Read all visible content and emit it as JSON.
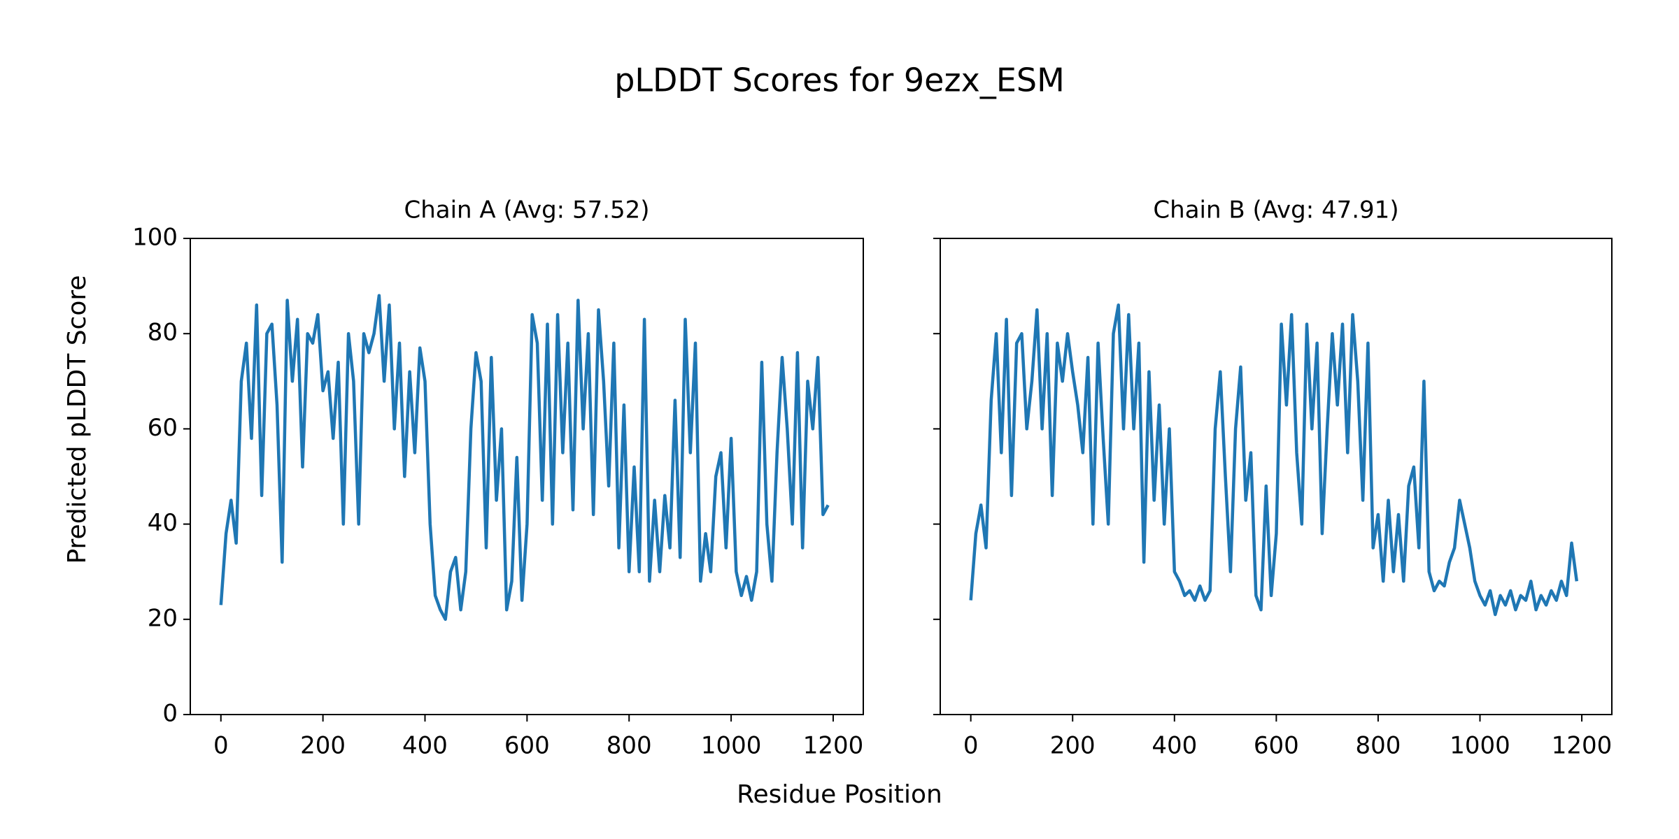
{
  "figure": {
    "title": "pLDDT Scores for 9ezx_ESM",
    "xlabel": "Residue Position",
    "ylabel": "Predicted pLDDT Score"
  },
  "chart_data": [
    {
      "type": "line",
      "title": "Chain A (Avg: 57.52)",
      "x": [
        0,
        10,
        20,
        30,
        40,
        50,
        60,
        70,
        80,
        90,
        100,
        110,
        120,
        130,
        140,
        150,
        160,
        170,
        180,
        190,
        200,
        210,
        220,
        230,
        240,
        250,
        260,
        270,
        280,
        290,
        300,
        310,
        320,
        330,
        340,
        350,
        360,
        370,
        380,
        390,
        400,
        410,
        420,
        430,
        440,
        450,
        460,
        470,
        480,
        490,
        500,
        510,
        520,
        530,
        540,
        550,
        560,
        570,
        580,
        590,
        600,
        610,
        620,
        630,
        640,
        650,
        660,
        670,
        680,
        690,
        700,
        710,
        720,
        730,
        740,
        750,
        760,
        770,
        780,
        790,
        800,
        810,
        820,
        830,
        840,
        850,
        860,
        870,
        880,
        890,
        900,
        910,
        920,
        930,
        940,
        950,
        960,
        970,
        980,
        990,
        1000,
        1010,
        1020,
        1030,
        1040,
        1050,
        1060,
        1070,
        1080,
        1090,
        1100,
        1110,
        1120,
        1130,
        1140,
        1150,
        1160,
        1170,
        1180,
        1190
      ],
      "series": [
        {
          "color": "#1f77b4",
          "values": [
            23,
            38,
            45,
            36,
            70,
            78,
            58,
            86,
            46,
            80,
            82,
            65,
            32,
            87,
            70,
            83,
            52,
            80,
            78,
            84,
            68,
            72,
            58,
            74,
            40,
            80,
            70,
            40,
            80,
            76,
            80,
            88,
            70,
            86,
            60,
            78,
            50,
            72,
            55,
            77,
            70,
            40,
            25,
            22,
            20,
            30,
            33,
            22,
            30,
            60,
            76,
            70,
            35,
            75,
            45,
            60,
            22,
            28,
            54,
            24,
            40,
            84,
            78,
            45,
            82,
            40,
            84,
            55,
            78,
            43,
            87,
            60,
            80,
            42,
            85,
            70,
            48,
            78,
            35,
            65,
            30,
            52,
            30,
            83,
            28,
            45,
            30,
            46,
            35,
            66,
            33,
            83,
            55,
            78,
            28,
            38,
            30,
            50,
            55,
            35,
            58,
            30,
            25,
            29,
            24,
            30,
            74,
            40,
            28,
            55,
            75,
            60,
            40,
            76,
            35,
            70,
            60,
            75,
            42,
            44
          ]
        }
      ],
      "xlim": [
        -60,
        1259
      ],
      "ylim": [
        0,
        100
      ],
      "xticks": [
        0,
        200,
        400,
        600,
        800,
        1000,
        1200
      ],
      "yticks": [
        0,
        20,
        40,
        60,
        80,
        100
      ]
    },
    {
      "type": "line",
      "title": "Chain B (Avg: 47.91)",
      "x": [
        0,
        10,
        20,
        30,
        40,
        50,
        60,
        70,
        80,
        90,
        100,
        110,
        120,
        130,
        140,
        150,
        160,
        170,
        180,
        190,
        200,
        210,
        220,
        230,
        240,
        250,
        260,
        270,
        280,
        290,
        300,
        310,
        320,
        330,
        340,
        350,
        360,
        370,
        380,
        390,
        400,
        410,
        420,
        430,
        440,
        450,
        460,
        470,
        480,
        490,
        500,
        510,
        520,
        530,
        540,
        550,
        560,
        570,
        580,
        590,
        600,
        610,
        620,
        630,
        640,
        650,
        660,
        670,
        680,
        690,
        700,
        710,
        720,
        730,
        740,
        750,
        760,
        770,
        780,
        790,
        800,
        810,
        820,
        830,
        840,
        850,
        860,
        870,
        880,
        890,
        900,
        910,
        920,
        930,
        940,
        950,
        960,
        970,
        980,
        990,
        1000,
        1010,
        1020,
        1030,
        1040,
        1050,
        1060,
        1070,
        1080,
        1090,
        1100,
        1110,
        1120,
        1130,
        1140,
        1150,
        1160,
        1170,
        1180,
        1190
      ],
      "series": [
        {
          "color": "#1f77b4",
          "values": [
            24,
            38,
            44,
            35,
            66,
            80,
            55,
            83,
            46,
            78,
            80,
            60,
            70,
            85,
            60,
            80,
            46,
            78,
            70,
            80,
            72,
            65,
            55,
            75,
            40,
            78,
            58,
            40,
            80,
            86,
            60,
            84,
            60,
            78,
            32,
            72,
            45,
            65,
            40,
            60,
            30,
            28,
            25,
            26,
            24,
            27,
            24,
            26,
            60,
            72,
            50,
            30,
            60,
            73,
            45,
            55,
            25,
            22,
            48,
            25,
            38,
            82,
            65,
            84,
            55,
            40,
            82,
            60,
            78,
            38,
            60,
            80,
            65,
            82,
            55,
            84,
            70,
            45,
            78,
            35,
            42,
            28,
            45,
            30,
            42,
            28,
            48,
            52,
            35,
            70,
            30,
            26,
            28,
            27,
            32,
            35,
            45,
            40,
            35,
            28,
            25,
            23,
            26,
            21,
            25,
            23,
            26,
            22,
            25,
            24,
            28,
            22,
            25,
            23,
            26,
            24,
            28,
            25,
            36,
            28
          ]
        }
      ],
      "xlim": [
        -60,
        1259
      ],
      "ylim": [
        0,
        100
      ],
      "xticks": [
        0,
        200,
        400,
        600,
        800,
        1000,
        1200
      ],
      "yticks": [
        0,
        20,
        40,
        60,
        80,
        100
      ]
    }
  ]
}
